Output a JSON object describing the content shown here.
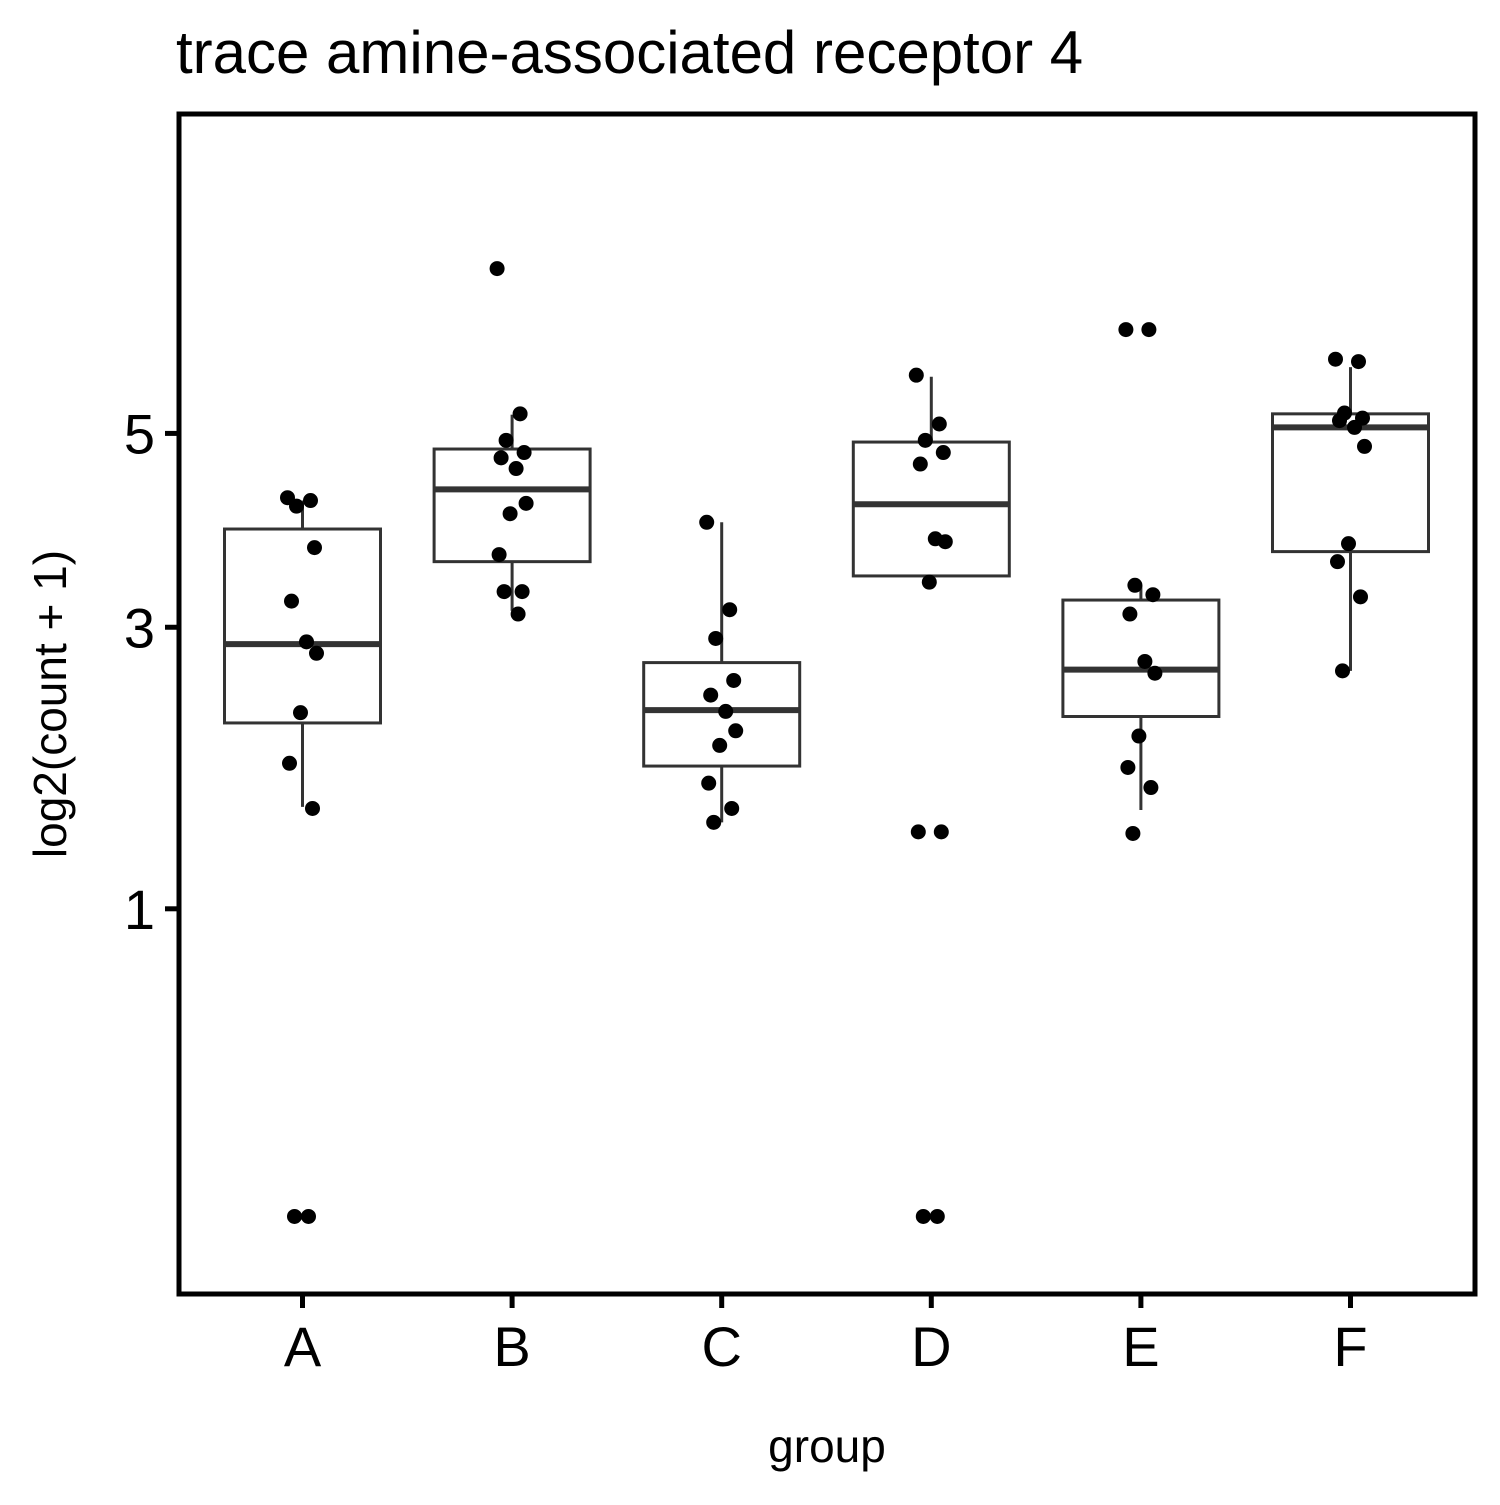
{
  "chart_data": {
    "type": "boxplot",
    "title": "trace amine-associated receptor 4",
    "xlabel": "group",
    "ylabel": "log2(count + 1)",
    "y_scale": "sqrt",
    "ylim": [
      0,
      8.2
    ],
    "y_ticks": [
      1,
      3,
      5
    ],
    "y_tick_labels": [
      "1",
      "3",
      "5"
    ],
    "categories": [
      "A",
      "B",
      "C",
      "D",
      "E",
      "F"
    ],
    "grid": false,
    "legend": "none",
    "colors": {
      "box_line": "#333333",
      "point": "#000000",
      "frame": "#000000",
      "background": "#ffffff"
    },
    "boxes": [
      {
        "group": "A",
        "q1": 2.2,
        "median": 2.85,
        "q3": 3.95,
        "whisker_low": 1.6,
        "whisker_high": 4.25
      },
      {
        "group": "B",
        "q1": 3.62,
        "median": 4.37,
        "q3": 4.82,
        "whisker_low": 3.15,
        "whisker_high": 5.22
      },
      {
        "group": "C",
        "q1": 1.88,
        "median": 2.3,
        "q3": 2.69,
        "whisker_low": 1.5,
        "whisker_high": 4.02
      },
      {
        "group": "D",
        "q1": 3.48,
        "median": 4.21,
        "q3": 4.9,
        "whisker_low": 3.38,
        "whisker_high": 5.68
      },
      {
        "group": "E",
        "q1": 2.25,
        "median": 2.63,
        "q3": 3.25,
        "whisker_low": 1.58,
        "whisker_high": 3.39
      },
      {
        "group": "F",
        "q1": 3.72,
        "median": 5.07,
        "q3": 5.23,
        "whisker_low": 2.62,
        "whisker_high": 5.8
      }
    ],
    "points": [
      {
        "group": "A",
        "y": [
          4.28,
          4.25,
          4.19,
          3.76,
          3.24,
          2.87,
          2.77,
          2.28,
          1.9,
          1.59,
          0.04,
          0.04
        ]
      },
      {
        "group": "B",
        "y": [
          7.1,
          5.23,
          4.92,
          4.78,
          4.72,
          4.6,
          4.22,
          4.11,
          3.69,
          3.33,
          3.33,
          3.12
        ]
      },
      {
        "group": "C",
        "y": [
          4.02,
          3.16,
          2.9,
          2.54,
          2.42,
          2.29,
          2.14,
          2.03,
          1.76,
          1.59,
          1.5
        ]
      },
      {
        "group": "D",
        "y": [
          5.7,
          5.11,
          4.92,
          4.78,
          4.65,
          3.85,
          3.82,
          3.42,
          1.44,
          1.44,
          0.04,
          0.04
        ]
      },
      {
        "group": "E",
        "y": [
          6.28,
          6.28,
          3.39,
          3.3,
          3.12,
          2.7,
          2.6,
          2.1,
          1.87,
          1.73,
          1.43
        ]
      },
      {
        "group": "F",
        "y": [
          5.9,
          5.87,
          5.24,
          5.18,
          5.15,
          5.07,
          4.85,
          3.8,
          3.62,
          3.28,
          2.62
        ]
      }
    ]
  }
}
